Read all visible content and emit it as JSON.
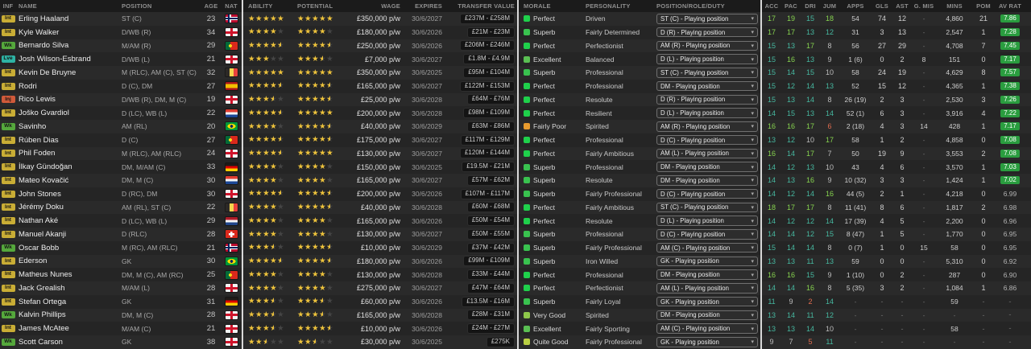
{
  "columns": {
    "info": [
      "INF",
      "NAME",
      "POSITION",
      "AGE",
      "NAT"
    ],
    "contract": [
      "ABILITY",
      "POTENTIAL",
      "WAGE",
      "EXPIRES",
      "TRANSFER VALUE"
    ],
    "status": [
      "MORALE",
      "PERSONALITY",
      "POSITION/ROLE/DUTY"
    ],
    "stats": [
      "ACC",
      "PAC",
      "DRI",
      "JUM",
      "APPS",
      "GLS",
      "AST",
      "G. MIS",
      "MINS",
      "POM",
      "AV RAT"
    ]
  },
  "legend": {
    "morale_colors": {
      "Perfect": "#1fd04b",
      "Superb": "#39c24f",
      "Excellent": "#5abf53",
      "Very Good": "#8ec74a",
      "Quite Good": "#b9cf43",
      "Fairly Poor": "#e89b2e"
    },
    "inf_colors": {
      "Int": "#c9ad35",
      "Wk": "#55a83c",
      "Lve": "#2eb3a4",
      "Inj": "#d05a3a"
    },
    "accent_colors": {
      "star": "#eec33c",
      "rating_badge": "#2a9d3f",
      "attr_high": "#86d34f",
      "attr_mid": "#46b8a0",
      "attr_low": "#bdbdbd",
      "attr_poor": "#e06c4f",
      "divider": "#d8d8d8"
    }
  },
  "players": [
    {
      "inf": "Int",
      "name": "Erling Haaland",
      "position": "ST (C)",
      "age": "23",
      "nat": "NOR",
      "ability": 5,
      "potential": 5,
      "wage": "£350,000 p/w",
      "expires": "30/6/2027",
      "value": "£237M - £258M",
      "morale": "Perfect",
      "personality": "Driven",
      "role": "ST (C) - Playing position",
      "stats": [
        "17",
        "19",
        "15",
        "18",
        "54",
        "74",
        "12",
        "-",
        "4,860",
        "21",
        "7.86"
      ]
    },
    {
      "inf": "Int",
      "name": "Kyle Walker",
      "position": "D/WB (R)",
      "age": "34",
      "nat": "ENG",
      "ability": 4,
      "potential": 4,
      "wage": "£180,000 p/w",
      "expires": "30/6/2026",
      "value": "£21M - £23M",
      "morale": "Superb",
      "personality": "Fairly Determined",
      "role": "D (R) - Playing position",
      "stats": [
        "17",
        "17",
        "13",
        "12",
        "31",
        "3",
        "13",
        "-",
        "2,547",
        "1",
        "7.28"
      ]
    },
    {
      "inf": "Wk",
      "name": "Bernardo Silva",
      "position": "M/AM (R)",
      "age": "29",
      "nat": "POR",
      "ability": 4.5,
      "potential": 4.5,
      "wage": "£250,000 p/w",
      "expires": "30/6/2026",
      "value": "£206M - £246M",
      "morale": "Perfect",
      "personality": "Perfectionist",
      "role": "AM (R) - Playing position",
      "stats": [
        "15",
        "13",
        "17",
        "8",
        "56",
        "27",
        "29",
        "-",
        "4,708",
        "7",
        "7.45"
      ]
    },
    {
      "inf": "Lve",
      "name": "Josh Wilson-Esbrand",
      "position": "D/WB (L)",
      "age": "21",
      "nat": "ENG",
      "ability": 3,
      "potential": 3.5,
      "wage": "£7,000 p/w",
      "expires": "30/6/2027",
      "value": "£1.8M - £4.9M",
      "morale": "Excellent",
      "personality": "Balanced",
      "role": "D (L) - Playing position",
      "stats": [
        "15",
        "16",
        "13",
        "9",
        "1 (6)",
        "0",
        "2",
        "8",
        "151",
        "0",
        "7.17"
      ]
    },
    {
      "inf": "Int",
      "name": "Kevin De Bruyne",
      "position": "M (RLC), AM (C), ST (C)",
      "age": "32",
      "nat": "BEL",
      "ability": 5,
      "potential": 5,
      "wage": "£350,000 p/w",
      "expires": "30/6/2025",
      "value": "£95M - £104M",
      "morale": "Superb",
      "personality": "Professional",
      "role": "ST (C) - Playing position",
      "stats": [
        "15",
        "14",
        "15",
        "10",
        "58",
        "24",
        "19",
        "-",
        "4,629",
        "8",
        "7.57"
      ]
    },
    {
      "inf": "Int",
      "name": "Rodri",
      "position": "D (C), DM",
      "age": "27",
      "nat": "ESP",
      "ability": 4.5,
      "potential": 4.5,
      "wage": "£165,000 p/w",
      "expires": "30/6/2027",
      "value": "£122M - £153M",
      "morale": "Perfect",
      "personality": "Professional",
      "role": "DM - Playing position",
      "stats": [
        "15",
        "12",
        "14",
        "13",
        "52",
        "15",
        "12",
        "-",
        "4,365",
        "1",
        "7.38"
      ]
    },
    {
      "inf": "Inj",
      "name": "Rico Lewis",
      "position": "D/WB (R), DM, M (C)",
      "age": "19",
      "nat": "ENG",
      "ability": 3.5,
      "potential": 4.5,
      "wage": "£25,000 p/w",
      "expires": "30/6/2028",
      "value": "£64M - £76M",
      "morale": "Perfect",
      "personality": "Resolute",
      "role": "D (R) - Playing position",
      "stats": [
        "15",
        "13",
        "14",
        "8",
        "26 (19)",
        "2",
        "3",
        "-",
        "2,530",
        "3",
        "7.26"
      ]
    },
    {
      "inf": "Int",
      "name": "Joško Gvardiol",
      "position": "D (LC), WB (L)",
      "age": "22",
      "nat": "CRO",
      "ability": 4.5,
      "potential": 5,
      "wage": "£200,000 p/w",
      "expires": "30/6/2028",
      "value": "£98M - £109M",
      "morale": "Perfect",
      "personality": "Resilient",
      "role": "D (L) - Playing position",
      "stats": [
        "14",
        "15",
        "13",
        "14",
        "52 (1)",
        "6",
        "3",
        "-",
        "3,916",
        "4",
        "7.22"
      ]
    },
    {
      "inf": "Wk",
      "name": "Savinho",
      "position": "AM (RL)",
      "age": "20",
      "nat": "BRA",
      "ability": 4,
      "potential": 4.5,
      "wage": "£40,000 p/w",
      "expires": "30/6/2029",
      "value": "£63M - £86M",
      "morale": "Fairly Poor",
      "personality": "Spirited",
      "role": "AM (R) - Playing position",
      "stats": [
        "16",
        "16",
        "17",
        "6",
        "2 (18)",
        "4",
        "3",
        "14",
        "428",
        "1",
        "7.17"
      ]
    },
    {
      "inf": "Int",
      "name": "Rúben Dias",
      "position": "D (C)",
      "age": "27",
      "nat": "POR",
      "ability": 4.5,
      "potential": 4.5,
      "wage": "£175,000 p/w",
      "expires": "30/6/2027",
      "value": "£117M - £129M",
      "morale": "Perfect",
      "personality": "Professional",
      "role": "D (C) - Playing position",
      "stats": [
        "13",
        "12",
        "10",
        "17",
        "58",
        "1",
        "2",
        "-",
        "4,858",
        "0",
        "7.08"
      ]
    },
    {
      "inf": "Int",
      "name": "Phil Foden",
      "position": "M (RLC), AM (RLC)",
      "age": "24",
      "nat": "ENG",
      "ability": 4.5,
      "potential": 5,
      "wage": "£130,000 p/w",
      "expires": "30/6/2027",
      "value": "£120M - £144M",
      "morale": "Perfect",
      "personality": "Fairly Ambitious",
      "role": "AM (L) - Playing position",
      "stats": [
        "16",
        "14",
        "17",
        "7",
        "50",
        "19",
        "9",
        "-",
        "3,553",
        "2",
        "7.08"
      ]
    },
    {
      "inf": "Int",
      "name": "İlkay Gündoğan",
      "position": "DM, M/AM (C)",
      "age": "33",
      "nat": "GER",
      "ability": 4,
      "potential": 4,
      "wage": "£150,000 p/w",
      "expires": "30/6/2025",
      "value": "£19.5M - £21M",
      "morale": "Superb",
      "personality": "Professional",
      "role": "DM - Playing position",
      "stats": [
        "14",
        "12",
        "13",
        "10",
        "43",
        "4",
        "6",
        "-",
        "3,570",
        "1",
        "7.03"
      ]
    },
    {
      "inf": "Int",
      "name": "Mateo Kovačić",
      "position": "DM, M (C)",
      "age": "30",
      "nat": "CRO",
      "ability": 4,
      "potential": 4,
      "wage": "£165,000 p/w",
      "expires": "30/6/2027",
      "value": "£57M - £62M",
      "morale": "Superb",
      "personality": "Resolute",
      "role": "DM - Playing position",
      "stats": [
        "14",
        "13",
        "16",
        "9",
        "10 (32)",
        "3",
        "3",
        "-",
        "1,424",
        "1",
        "7.02"
      ]
    },
    {
      "inf": "Int",
      "name": "John Stones",
      "position": "D (RC), DM",
      "age": "30",
      "nat": "ENG",
      "ability": 4.5,
      "potential": 4.5,
      "wage": "£200,000 p/w",
      "expires": "30/6/2026",
      "value": "£107M - £117M",
      "morale": "Superb",
      "personality": "Fairly Professional",
      "role": "D (C) - Playing position",
      "stats": [
        "14",
        "12",
        "14",
        "16",
        "44 (5)",
        "2",
        "1",
        "-",
        "4,218",
        "0",
        "6.99"
      ]
    },
    {
      "inf": "Int",
      "name": "Jérémy Doku",
      "position": "AM (RL), ST (C)",
      "age": "22",
      "nat": "BEL",
      "ability": 4,
      "potential": 4.5,
      "wage": "£40,000 p/w",
      "expires": "30/6/2028",
      "value": "£60M - £68M",
      "morale": "Perfect",
      "personality": "Fairly Ambitious",
      "role": "ST (C) - Playing position",
      "stats": [
        "18",
        "17",
        "17",
        "8",
        "11 (41)",
        "8",
        "6",
        "-",
        "1,817",
        "2",
        "6.98"
      ]
    },
    {
      "inf": "Int",
      "name": "Nathan Aké",
      "position": "D (LC), WB (L)",
      "age": "29",
      "nat": "NED",
      "ability": 4,
      "potential": 4,
      "wage": "£165,000 p/w",
      "expires": "30/6/2026",
      "value": "£50M - £54M",
      "morale": "Perfect",
      "personality": "Resolute",
      "role": "D (L) - Playing position",
      "stats": [
        "14",
        "12",
        "12",
        "14",
        "17 (39)",
        "4",
        "5",
        "-",
        "2,200",
        "0",
        "6.96"
      ]
    },
    {
      "inf": "Int",
      "name": "Manuel Akanji",
      "position": "D (RLC)",
      "age": "28",
      "nat": "SUI",
      "ability": 4,
      "potential": 4,
      "wage": "£130,000 p/w",
      "expires": "30/6/2027",
      "value": "£50M - £55M",
      "morale": "Superb",
      "personality": "Professional",
      "role": "D (C) - Playing position",
      "stats": [
        "14",
        "14",
        "12",
        "15",
        "8 (47)",
        "1",
        "5",
        "-",
        "1,770",
        "0",
        "6.95"
      ]
    },
    {
      "inf": "Wk",
      "name": "Oscar Bobb",
      "position": "M (RC), AM (RLC)",
      "age": "21",
      "nat": "NOR",
      "ability": 3.5,
      "potential": 4.5,
      "wage": "£10,000 p/w",
      "expires": "30/6/2029",
      "value": "£37M - £42M",
      "morale": "Superb",
      "personality": "Fairly Professional",
      "role": "AM (C) - Playing position",
      "stats": [
        "15",
        "14",
        "14",
        "8",
        "0 (7)",
        "1",
        "0",
        "15",
        "58",
        "0",
        "6.95"
      ]
    },
    {
      "inf": "Int",
      "name": "Ederson",
      "position": "GK",
      "age": "30",
      "nat": "BRA",
      "ability": 4.5,
      "potential": 4.5,
      "wage": "£180,000 p/w",
      "expires": "30/6/2026",
      "value": "£99M - £109M",
      "morale": "Superb",
      "personality": "Iron Willed",
      "role": "GK - Playing position",
      "stats": [
        "13",
        "13",
        "11",
        "13",
        "59",
        "0",
        "0",
        "-",
        "5,310",
        "0",
        "6.92"
      ]
    },
    {
      "inf": "Int",
      "name": "Matheus Nunes",
      "position": "DM, M (C), AM (RC)",
      "age": "25",
      "nat": "POR",
      "ability": 4,
      "potential": 4,
      "wage": "£130,000 p/w",
      "expires": "30/6/2028",
      "value": "£33M - £44M",
      "morale": "Perfect",
      "personality": "Professional",
      "role": "DM - Playing position",
      "stats": [
        "16",
        "16",
        "15",
        "9",
        "1 (10)",
        "0",
        "2",
        "-",
        "287",
        "0",
        "6.90"
      ]
    },
    {
      "inf": "Int",
      "name": "Jack Grealish",
      "position": "M/AM (L)",
      "age": "28",
      "nat": "ENG",
      "ability": 4,
      "potential": 4,
      "wage": "£275,000 p/w",
      "expires": "30/6/2027",
      "value": "£47M - £64M",
      "morale": "Perfect",
      "personality": "Perfectionist",
      "role": "AM (L) - Playing position",
      "stats": [
        "14",
        "14",
        "16",
        "8",
        "5 (35)",
        "3",
        "2",
        "-",
        "1,084",
        "1",
        "6.86"
      ]
    },
    {
      "inf": "Int",
      "name": "Stefan Ortega",
      "position": "GK",
      "age": "31",
      "nat": "GER",
      "ability": 3.5,
      "potential": 3.5,
      "wage": "£60,000 p/w",
      "expires": "30/6/2026",
      "value": "£13.5M - £16M",
      "morale": "Superb",
      "personality": "Fairly Loyal",
      "role": "GK - Playing position",
      "stats": [
        "11",
        "9",
        "2",
        "14",
        "-",
        "-",
        "-",
        "-",
        "59",
        "-",
        "-"
      ]
    },
    {
      "inf": "Wk",
      "name": "Kalvin Phillips",
      "position": "DM, M (C)",
      "age": "28",
      "nat": "ENG",
      "ability": 3.5,
      "potential": 3.5,
      "wage": "£165,000 p/w",
      "expires": "30/6/2028",
      "value": "£28M - £31M",
      "morale": "Very Good",
      "personality": "Spirited",
      "role": "DM - Playing position",
      "stats": [
        "13",
        "14",
        "11",
        "12",
        "-",
        "-",
        "-",
        "-",
        "-",
        "-",
        "-"
      ]
    },
    {
      "inf": "Int",
      "name": "James McAtee",
      "position": "M/AM (C)",
      "age": "21",
      "nat": "ENG",
      "ability": 3.5,
      "potential": 4.5,
      "wage": "£10,000 p/w",
      "expires": "30/6/2026",
      "value": "£24M - £27M",
      "morale": "Excellent",
      "personality": "Fairly Sporting",
      "role": "AM (C) - Playing position",
      "stats": [
        "13",
        "13",
        "14",
        "10",
        "-",
        "-",
        "-",
        "-",
        "58",
        "-",
        "-"
      ]
    },
    {
      "inf": "Wk",
      "name": "Scott Carson",
      "position": "GK",
      "age": "38",
      "nat": "ENG",
      "ability": 2.5,
      "potential": 2.5,
      "wage": "£30,000 p/w",
      "expires": "30/6/2025",
      "value": "£275K",
      "morale": "Quite Good",
      "personality": "Fairly Professional",
      "role": "GK - Playing position",
      "stats": [
        "9",
        "7",
        "5",
        "11",
        "-",
        "-",
        "-",
        "-",
        "-",
        "-",
        "-"
      ]
    }
  ]
}
